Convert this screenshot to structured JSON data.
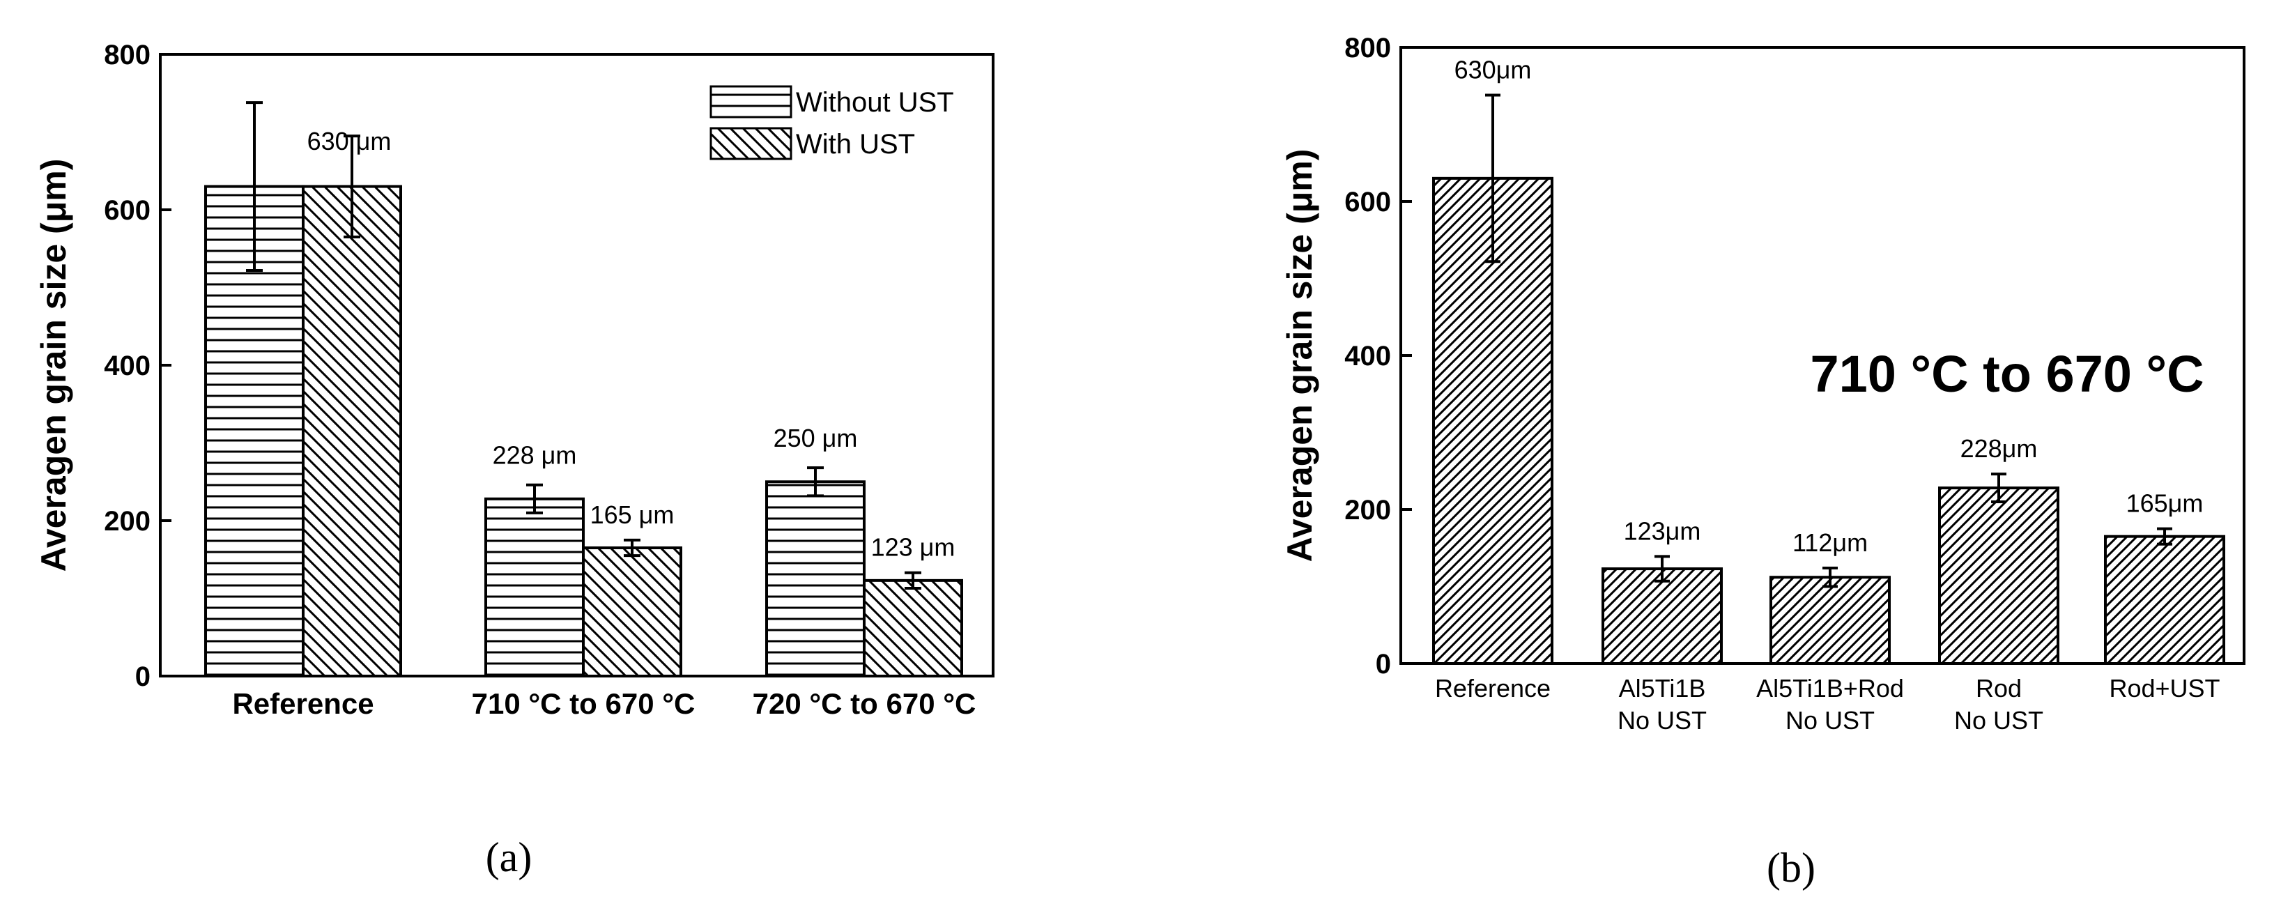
{
  "chart_data": [
    {
      "type": "bar",
      "panel_label": "(a)",
      "ylabel": "Averagen grain size (μm)",
      "ylim": [
        0,
        800
      ],
      "yticks": [
        "0",
        "200",
        "400",
        "600",
        "800"
      ],
      "categories": [
        "Reference",
        "710 °C to 670 °C",
        "720 °C to 670 °C"
      ],
      "legend_position": "top-right",
      "series": [
        {
          "name": "Without UST",
          "pattern": "horizontal-lines",
          "values": [
            630,
            228,
            250
          ],
          "errors": [
            108,
            18,
            18
          ],
          "labels": [
            "",
            "228 μm",
            "250 μm"
          ]
        },
        {
          "name": "With UST",
          "pattern": "diagonal-lines",
          "values": [
            630,
            165,
            123
          ],
          "errors": [
            65,
            10,
            10
          ],
          "labels": [
            "630 μm",
            "165 μm",
            "123 μm"
          ]
        }
      ]
    },
    {
      "type": "bar",
      "panel_label": "(b)",
      "ylabel": "Averagen grain size (μm)",
      "ylim": [
        0,
        800
      ],
      "yticks": [
        "0",
        "200",
        "400",
        "600",
        "800"
      ],
      "annotation": "710 °C to 670 °C",
      "categories": [
        [
          "Reference"
        ],
        [
          "Al5Ti1B",
          "No UST"
        ],
        [
          "Al5Ti1B+Rod",
          "No UST"
        ],
        [
          "Rod",
          "No UST"
        ],
        [
          "Rod+UST"
        ]
      ],
      "series": [
        {
          "pattern": "diagonal-lines",
          "values": [
            630,
            123,
            112,
            228,
            165
          ],
          "errors": [
            108,
            16,
            12,
            18,
            10
          ],
          "labels": [
            "630μm",
            "123μm",
            "112μm",
            "228μm",
            "165μm"
          ]
        }
      ]
    }
  ]
}
